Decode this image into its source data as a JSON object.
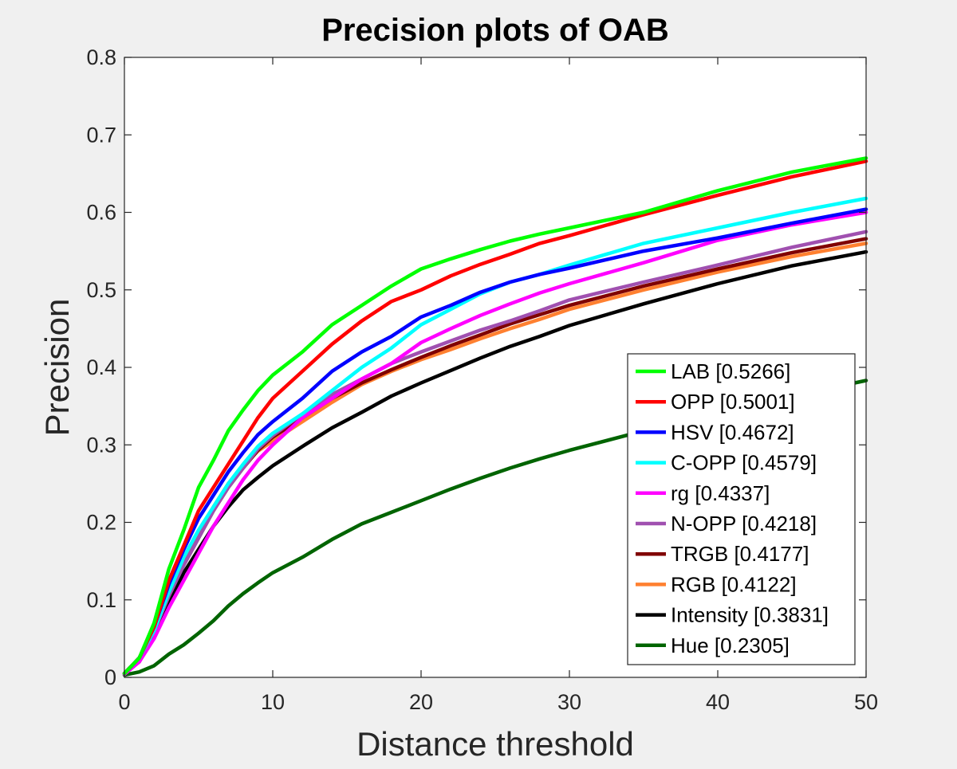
{
  "chart_data": {
    "type": "line",
    "title": "Precision plots of OAB",
    "xlabel": "Distance threshold",
    "ylabel": "Precision",
    "xlim": [
      0,
      50
    ],
    "ylim": [
      0,
      0.8
    ],
    "xticks": [
      0,
      10,
      20,
      30,
      40,
      50
    ],
    "xtick_labels": [
      "0",
      "10",
      "20",
      "30",
      "40",
      "50"
    ],
    "yticks": [
      0,
      0.1,
      0.2,
      0.3,
      0.4,
      0.5,
      0.6,
      0.7,
      0.8
    ],
    "ytick_labels": [
      "0",
      "0.1",
      "0.2",
      "0.3",
      "0.4",
      "0.5",
      "0.6",
      "0.7",
      "0.8"
    ],
    "grid": false,
    "legend_position": "bottom-right",
    "x": [
      0,
      1,
      2,
      3,
      4,
      5,
      6,
      7,
      8,
      9,
      10,
      12,
      14,
      16,
      18,
      20,
      22,
      24,
      26,
      28,
      30,
      35,
      40,
      45,
      50
    ],
    "series": [
      {
        "name": "LAB [0.5266]",
        "color": "#00ff00",
        "values": [
          0.005,
          0.025,
          0.07,
          0.14,
          0.19,
          0.245,
          0.28,
          0.318,
          0.345,
          0.37,
          0.39,
          0.42,
          0.455,
          0.48,
          0.505,
          0.527,
          0.54,
          0.552,
          0.563,
          0.572,
          0.58,
          0.6,
          0.628,
          0.652,
          0.67
        ]
      },
      {
        "name": "OPP [0.5001]",
        "color": "#ff0000",
        "values": [
          0.005,
          0.025,
          0.065,
          0.125,
          0.17,
          0.215,
          0.245,
          0.275,
          0.305,
          0.335,
          0.36,
          0.395,
          0.43,
          0.46,
          0.485,
          0.5,
          0.518,
          0.533,
          0.546,
          0.56,
          0.57,
          0.597,
          0.622,
          0.646,
          0.666
        ]
      },
      {
        "name": "HSV [0.4672]",
        "color": "#0000ff",
        "values": [
          0.005,
          0.025,
          0.065,
          0.12,
          0.165,
          0.205,
          0.235,
          0.265,
          0.29,
          0.313,
          0.33,
          0.36,
          0.395,
          0.42,
          0.44,
          0.465,
          0.48,
          0.497,
          0.51,
          0.52,
          0.528,
          0.55,
          0.567,
          0.586,
          0.604
        ]
      },
      {
        "name": "C-OPP [0.4579]",
        "color": "#00ffff",
        "values": [
          0.005,
          0.025,
          0.06,
          0.11,
          0.155,
          0.19,
          0.22,
          0.25,
          0.275,
          0.298,
          0.315,
          0.34,
          0.37,
          0.4,
          0.425,
          0.455,
          0.475,
          0.495,
          0.51,
          0.52,
          0.532,
          0.56,
          0.58,
          0.6,
          0.618
        ]
      },
      {
        "name": "rg [0.4337]",
        "color": "#ff00ff",
        "values": [
          0.004,
          0.02,
          0.05,
          0.09,
          0.125,
          0.16,
          0.195,
          0.225,
          0.255,
          0.28,
          0.3,
          0.335,
          0.36,
          0.385,
          0.405,
          0.432,
          0.45,
          0.467,
          0.482,
          0.496,
          0.508,
          0.535,
          0.564,
          0.584,
          0.6
        ]
      },
      {
        "name": "N-OPP [0.4218]",
        "color": "#a050b0",
        "values": [
          0.005,
          0.025,
          0.06,
          0.105,
          0.145,
          0.18,
          0.215,
          0.245,
          0.27,
          0.295,
          0.312,
          0.34,
          0.365,
          0.385,
          0.405,
          0.42,
          0.434,
          0.448,
          0.46,
          0.473,
          0.487,
          0.51,
          0.532,
          0.555,
          0.575
        ]
      },
      {
        "name": "TRGB [0.4177]",
        "color": "#800000",
        "values": [
          0.005,
          0.025,
          0.06,
          0.105,
          0.145,
          0.18,
          0.215,
          0.245,
          0.27,
          0.293,
          0.31,
          0.335,
          0.36,
          0.38,
          0.397,
          0.413,
          0.428,
          0.442,
          0.456,
          0.468,
          0.48,
          0.505,
          0.527,
          0.548,
          0.566
        ]
      },
      {
        "name": "RGB [0.4122]",
        "color": "#ff8030",
        "values": [
          0.005,
          0.025,
          0.06,
          0.105,
          0.15,
          0.185,
          0.22,
          0.25,
          0.272,
          0.292,
          0.305,
          0.33,
          0.355,
          0.378,
          0.395,
          0.41,
          0.423,
          0.437,
          0.45,
          0.462,
          0.475,
          0.5,
          0.523,
          0.543,
          0.56
        ]
      },
      {
        "name": "Intensity [0.3831]",
        "color": "#000000",
        "values": [
          0.005,
          0.02,
          0.055,
          0.095,
          0.135,
          0.165,
          0.195,
          0.22,
          0.242,
          0.258,
          0.273,
          0.298,
          0.322,
          0.342,
          0.363,
          0.38,
          0.396,
          0.412,
          0.427,
          0.44,
          0.454,
          0.482,
          0.508,
          0.531,
          0.549
        ]
      },
      {
        "name": "Hue [0.2305]",
        "color": "#006400",
        "values": [
          0.003,
          0.007,
          0.015,
          0.03,
          0.042,
          0.057,
          0.073,
          0.092,
          0.108,
          0.122,
          0.135,
          0.155,
          0.178,
          0.198,
          0.213,
          0.228,
          0.243,
          0.257,
          0.27,
          0.282,
          0.293,
          0.318,
          0.341,
          0.363,
          0.383
        ]
      }
    ]
  }
}
